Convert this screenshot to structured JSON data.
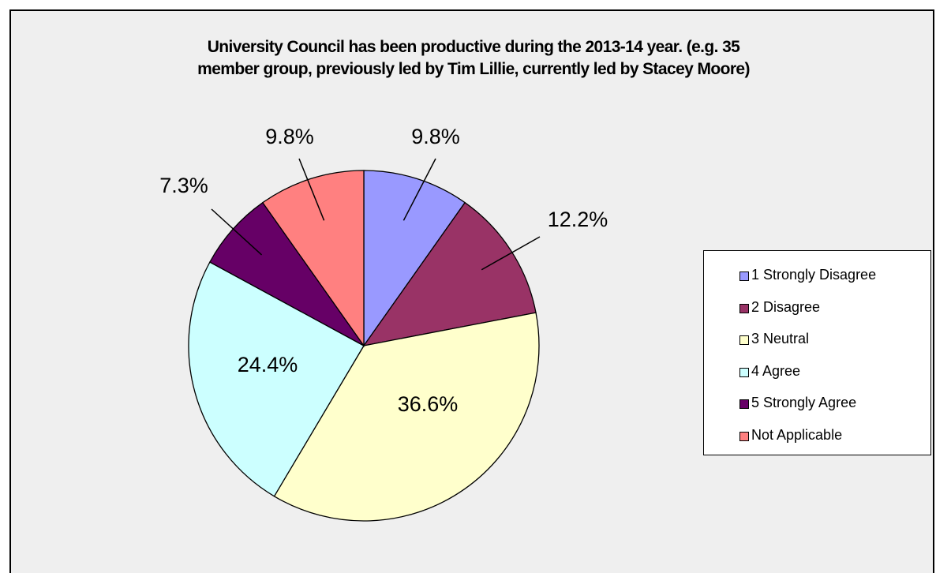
{
  "chart_data": {
    "type": "pie",
    "title": "University Council has been productive during the 2013-14 year. (e.g. 35 member group, previously led by Tim Lillie, currently led by Stacey Moore)",
    "title_lines": [
      "University Council has been productive during the 2013-14 year. (e.g. 35",
      "member group, previously led by Tim Lillie, currently led by Stacey Moore)"
    ],
    "categories": [
      "1 Strongly Disagree",
      "2 Disagree",
      "3 Neutral",
      "4 Agree",
      "5 Strongly Agree",
      "Not Applicable"
    ],
    "values": [
      9.8,
      12.2,
      36.6,
      24.4,
      7.3,
      9.8
    ],
    "data_labels": [
      "9.8%",
      "12.2%",
      "36.6%",
      "24.4%",
      "7.3%",
      "9.8%"
    ],
    "colors": [
      "#9999ff",
      "#993366",
      "#ffffcc",
      "#ccffff",
      "#660066",
      "#ff8080"
    ],
    "legend_position": "right",
    "start_angle": "12 o'clock, clockwise"
  }
}
